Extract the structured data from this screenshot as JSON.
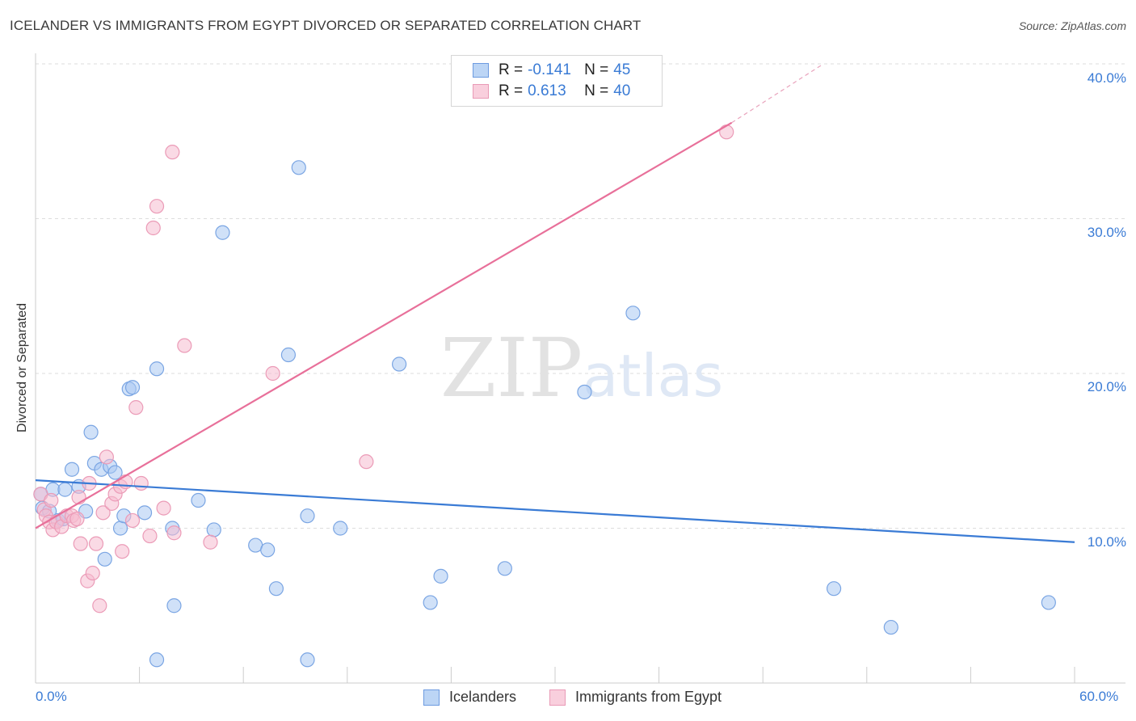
{
  "title": "ICELANDER VS IMMIGRANTS FROM EGYPT DIVORCED OR SEPARATED CORRELATION CHART",
  "source": "Source: ZipAtlas.com",
  "watermark": "ZIPatlas",
  "colors": {
    "blue": "#3a7bd5",
    "blue_fill": "#a9c8f2",
    "pink": "#e8709a",
    "pink_fill": "#f6bcd0",
    "grid": "#dddddd"
  },
  "legend": {
    "r_label": "R =",
    "n_label": "N =",
    "series": [
      {
        "r": "-0.141",
        "n": "45"
      },
      {
        "r": "0.613",
        "n": "40"
      }
    ]
  },
  "chart_data": {
    "type": "scatter",
    "title": "ICELANDER VS IMMIGRANTS FROM EGYPT DIVORCED OR SEPARATED CORRELATION CHART",
    "xlabel": "",
    "ylabel": "Divorced or Separated",
    "xlim": [
      0,
      60
    ],
    "ylim": [
      0,
      40
    ],
    "x_tick_labels": [
      "0.0%",
      "60.0%"
    ],
    "y_ticks": [
      10,
      20,
      30,
      40
    ],
    "y_tick_labels": [
      "10.0%",
      "20.0%",
      "30.0%",
      "40.0%"
    ],
    "legend_position": "top-center",
    "series": [
      {
        "name": "Icelanders",
        "color": "#3a7bd5",
        "trend": {
          "x": [
            0,
            60
          ],
          "y": [
            13.1,
            9.1
          ],
          "dashed_extension": false
        },
        "points": [
          [
            0.3,
            12.2
          ],
          [
            0.4,
            11.3
          ],
          [
            0.8,
            11.1
          ],
          [
            1.0,
            12.5
          ],
          [
            1.3,
            10.5
          ],
          [
            1.6,
            10.6
          ],
          [
            1.7,
            12.5
          ],
          [
            2.1,
            13.8
          ],
          [
            2.5,
            12.7
          ],
          [
            2.9,
            11.1
          ],
          [
            3.2,
            16.2
          ],
          [
            3.4,
            14.2
          ],
          [
            3.8,
            13.8
          ],
          [
            4.0,
            8.0
          ],
          [
            4.3,
            14.0
          ],
          [
            4.6,
            13.6
          ],
          [
            4.9,
            10.0
          ],
          [
            5.1,
            10.8
          ],
          [
            5.4,
            19.0
          ],
          [
            5.6,
            19.1
          ],
          [
            6.3,
            11.0
          ],
          [
            7.0,
            20.3
          ],
          [
            7.9,
            10.0
          ],
          [
            8.0,
            5.0
          ],
          [
            7.0,
            1.5
          ],
          [
            9.4,
            11.8
          ],
          [
            10.3,
            9.9
          ],
          [
            10.8,
            29.1
          ],
          [
            12.7,
            8.9
          ],
          [
            13.4,
            8.6
          ],
          [
            13.9,
            6.1
          ],
          [
            14.6,
            21.2
          ],
          [
            15.2,
            33.3
          ],
          [
            15.7,
            1.5
          ],
          [
            15.7,
            10.8
          ],
          [
            17.6,
            10.0
          ],
          [
            21.0,
            20.6
          ],
          [
            22.8,
            5.2
          ],
          [
            23.4,
            6.9
          ],
          [
            27.1,
            7.4
          ],
          [
            31.7,
            18.8
          ],
          [
            34.5,
            23.9
          ],
          [
            46.1,
            6.1
          ],
          [
            49.4,
            3.6
          ],
          [
            58.5,
            5.2
          ]
        ]
      },
      {
        "name": "Immigrants from Egypt",
        "color": "#e8709a",
        "trend": {
          "x": [
            0,
            40.2
          ],
          "y": [
            10.0,
            36.2
          ],
          "dashed_extension": true,
          "dashed_to": [
            45.5,
            40.0
          ]
        },
        "points": [
          [
            0.3,
            12.2
          ],
          [
            0.5,
            11.2
          ],
          [
            0.6,
            10.8
          ],
          [
            0.8,
            10.4
          ],
          [
            1.0,
            9.9
          ],
          [
            1.2,
            10.4
          ],
          [
            1.5,
            10.1
          ],
          [
            1.8,
            10.8
          ],
          [
            2.1,
            10.8
          ],
          [
            2.2,
            10.5
          ],
          [
            2.4,
            10.6
          ],
          [
            2.5,
            12.0
          ],
          [
            2.6,
            9.0
          ],
          [
            3.0,
            6.6
          ],
          [
            3.1,
            12.9
          ],
          [
            3.3,
            7.1
          ],
          [
            3.5,
            9.0
          ],
          [
            3.7,
            5.0
          ],
          [
            3.9,
            11.0
          ],
          [
            4.1,
            14.6
          ],
          [
            4.4,
            11.6
          ],
          [
            4.6,
            12.2
          ],
          [
            4.9,
            12.7
          ],
          [
            5.0,
            8.5
          ],
          [
            5.2,
            13.0
          ],
          [
            5.6,
            10.5
          ],
          [
            5.8,
            17.8
          ],
          [
            6.1,
            12.9
          ],
          [
            6.6,
            9.5
          ],
          [
            7.0,
            30.8
          ],
          [
            6.8,
            29.4
          ],
          [
            7.4,
            11.3
          ],
          [
            7.9,
            34.3
          ],
          [
            8.0,
            9.7
          ],
          [
            8.6,
            21.8
          ],
          [
            10.1,
            9.1
          ],
          [
            13.7,
            20.0
          ],
          [
            19.1,
            14.3
          ],
          [
            39.9,
            35.6
          ],
          [
            0.9,
            11.8
          ]
        ]
      }
    ]
  },
  "bottom_legend": [
    "Icelanders",
    "Immigrants from Egypt"
  ]
}
